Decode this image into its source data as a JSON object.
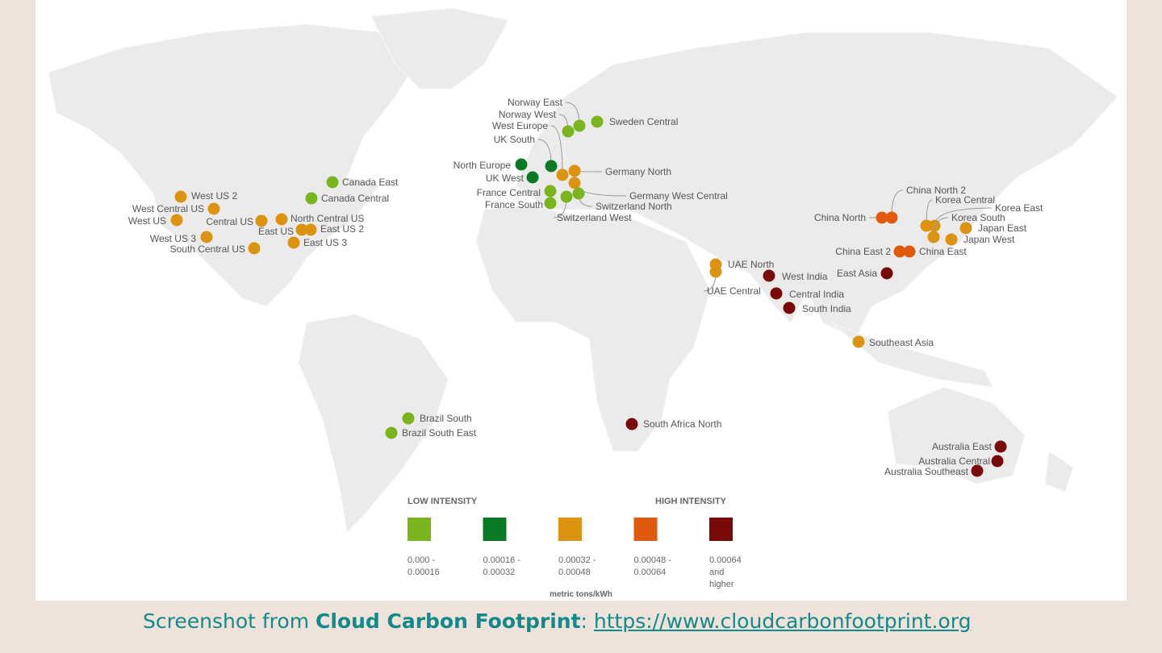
{
  "regions": [
    {
      "name": "Norway East",
      "color": "#7ab51d"
    },
    {
      "name": "Norway West",
      "color": "#7ab51d"
    },
    {
      "name": "West Europe",
      "color": "#dc9410"
    },
    {
      "name": "UK South",
      "color": "#0a7b24"
    },
    {
      "name": "Sweden Central",
      "color": "#7ab51d"
    },
    {
      "name": "North Europe",
      "color": "#0a7b24"
    },
    {
      "name": "UK West",
      "color": "#0a7b24"
    },
    {
      "name": "Germany North",
      "color": "#dc9410"
    },
    {
      "name": "Germany West Central",
      "color": "#dc9410"
    },
    {
      "name": "France Central",
      "color": "#7ab51d"
    },
    {
      "name": "France South",
      "color": "#7ab51d"
    },
    {
      "name": "Switzerland North",
      "color": "#7ab51d"
    },
    {
      "name": "Switzerland West",
      "color": "#7ab51d"
    },
    {
      "name": "Canada East",
      "color": "#7ab51d"
    },
    {
      "name": "Canada Central",
      "color": "#7ab51d"
    },
    {
      "name": "West US 2",
      "color": "#dc9410"
    },
    {
      "name": "West Central US",
      "color": "#dc9410"
    },
    {
      "name": "West US",
      "color": "#dc9410"
    },
    {
      "name": "Central US",
      "color": "#dc9410"
    },
    {
      "name": "North Central US",
      "color": "#dc9410"
    },
    {
      "name": "East US",
      "color": "#dc9410"
    },
    {
      "name": "East US 2",
      "color": "#dc9410"
    },
    {
      "name": "East US 3",
      "color": "#dc9410"
    },
    {
      "name": "West US 3",
      "color": "#dc9410"
    },
    {
      "name": "South Central US",
      "color": "#dc9410"
    },
    {
      "name": "Brazil South",
      "color": "#7ab51d"
    },
    {
      "name": "Brazil South East",
      "color": "#7ab51d"
    },
    {
      "name": "South Africa North",
      "color": "#7a0a0a"
    },
    {
      "name": "UAE North",
      "color": "#dc9410"
    },
    {
      "name": "UAE Central",
      "color": "#dc9410"
    },
    {
      "name": "West India",
      "color": "#7a0a0a"
    },
    {
      "name": "Central India",
      "color": "#7a0a0a"
    },
    {
      "name": "South India",
      "color": "#7a0a0a"
    },
    {
      "name": "China North",
      "color": "#e05a0e"
    },
    {
      "name": "China North 2",
      "color": "#e05a0e"
    },
    {
      "name": "Korea Central",
      "color": "#dc9410"
    },
    {
      "name": "Korea East",
      "color": "#dc9410"
    },
    {
      "name": "Korea South",
      "color": "#dc9410"
    },
    {
      "name": "Japan East",
      "color": "#dc9410"
    },
    {
      "name": "Japan West",
      "color": "#dc9410"
    },
    {
      "name": "China East 2",
      "color": "#e05a0e"
    },
    {
      "name": "China East",
      "color": "#e05a0e"
    },
    {
      "name": "East Asia",
      "color": "#7a0a0a"
    },
    {
      "name": "Southeast Asia",
      "color": "#dc9410"
    },
    {
      "name": "Australia East",
      "color": "#7a0a0a"
    },
    {
      "name": "Australia Central",
      "color": "#7a0a0a"
    },
    {
      "name": "Australia Southeast",
      "color": "#7a0a0a"
    }
  ],
  "legend": {
    "low_label": "LOW INTENSITY",
    "high_label": "HIGH INTENSITY",
    "bins": [
      {
        "label": "0.000 - 0.00016",
        "color": "#7ab51d"
      },
      {
        "label": "0.00016 - 0.00032",
        "color": "#0a7b24"
      },
      {
        "label": "0.00032 - 0.00048",
        "color": "#dc9410"
      },
      {
        "label": "0.00048 - 0.00064",
        "color": "#e05a0e"
      },
      {
        "label": "0.00064 and higher",
        "color": "#7a0a0a"
      }
    ],
    "unit": "metric tons/kWh"
  },
  "caption": {
    "prefix": "Screenshot from ",
    "brand": "Cloud Carbon Footprint",
    "separator": ": ",
    "url": "https://www.cloudcarbonfootprint.org"
  }
}
